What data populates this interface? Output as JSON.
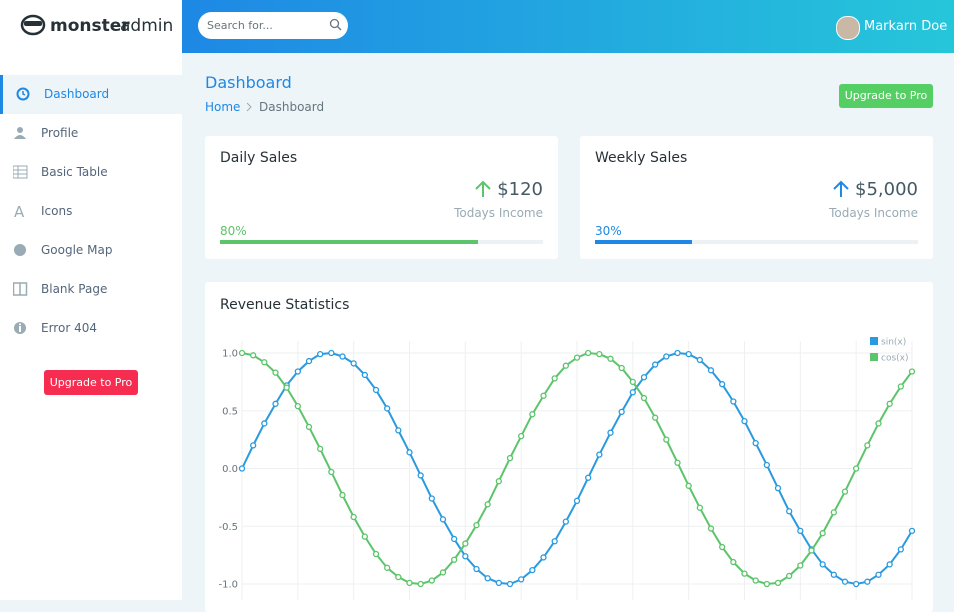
{
  "logo": {
    "bold": "monster",
    "light": "admin"
  },
  "search_placeholder": "Search for...",
  "user_name": "Markarn Doe",
  "sidebar": {
    "items": [
      "Dashboard",
      "Profile",
      "Basic Table",
      "Icons",
      "Google Map",
      "Blank Page",
      "Error 404"
    ],
    "active": 0,
    "button": "Upgrade to Pro"
  },
  "page": {
    "title": "Dashboard",
    "breadcrumb": [
      "Home",
      "Dashboard"
    ],
    "button": "Upgrade to Pro"
  },
  "cards": [
    {
      "title": "Daily Sales",
      "amount": "$120",
      "caption": "Todays Income",
      "progress": {
        "value": 80,
        "label": "80%"
      },
      "color": "#5cc46a"
    },
    {
      "title": "Weekly Sales",
      "amount": "$5,000",
      "caption": "Todays Income",
      "progress": {
        "value": 30,
        "label": "30%"
      },
      "color": "#1e88e5"
    }
  ],
  "chart_data": {
    "type": "line",
    "title": "Revenue Statistics",
    "x": [
      0,
      0.2,
      0.4,
      0.6,
      0.8,
      1.0,
      1.2,
      1.4,
      1.6,
      1.8,
      2.0,
      2.2,
      2.4,
      2.6,
      2.8,
      3.0,
      3.2,
      3.4,
      3.6,
      3.8,
      4.0,
      4.2,
      4.4,
      4.6,
      4.8,
      5.0,
      5.2,
      5.4,
      5.6,
      5.8,
      6.0,
      6.2,
      6.4,
      6.6,
      6.8,
      7.0,
      7.2,
      7.4,
      7.6,
      7.8,
      8.0,
      8.2,
      8.4,
      8.6,
      8.8,
      9.0,
      9.2,
      9.4,
      9.6,
      9.8,
      10.0,
      10.2,
      10.4,
      10.6,
      10.8,
      11.0,
      11.2,
      11.4,
      11.6,
      11.8,
      12.0
    ],
    "series": [
      {
        "name": "sin(x)",
        "color": "#2a9ae0",
        "values": [
          0.0,
          0.2,
          0.39,
          0.56,
          0.72,
          0.84,
          0.93,
          0.99,
          1.0,
          0.97,
          0.91,
          0.81,
          0.68,
          0.52,
          0.33,
          0.14,
          -0.06,
          -0.26,
          -0.44,
          -0.61,
          -0.76,
          -0.87,
          -0.95,
          -0.99,
          -1.0,
          -0.96,
          -0.88,
          -0.77,
          -0.63,
          -0.46,
          -0.28,
          -0.08,
          0.12,
          0.31,
          0.49,
          0.66,
          0.79,
          0.9,
          0.97,
          1.0,
          0.99,
          0.94,
          0.85,
          0.73,
          0.58,
          0.41,
          0.22,
          0.03,
          -0.17,
          -0.37,
          -0.54,
          -0.7,
          -0.83,
          -0.92,
          -0.98,
          -1.0,
          -0.98,
          -0.92,
          -0.83,
          -0.7,
          -0.54
        ]
      },
      {
        "name": "cos(x)",
        "color": "#5cc46a",
        "values": [
          1.0,
          0.98,
          0.92,
          0.83,
          0.7,
          0.54,
          0.36,
          0.17,
          -0.03,
          -0.23,
          -0.42,
          -0.59,
          -0.74,
          -0.86,
          -0.94,
          -0.99,
          -1.0,
          -0.97,
          -0.9,
          -0.79,
          -0.65,
          -0.49,
          -0.31,
          -0.11,
          0.09,
          0.28,
          0.47,
          0.63,
          0.78,
          0.89,
          0.96,
          1.0,
          0.99,
          0.95,
          0.87,
          0.75,
          0.61,
          0.44,
          0.25,
          0.05,
          -0.15,
          -0.34,
          -0.52,
          -0.68,
          -0.81,
          -0.91,
          -0.97,
          -1.0,
          -0.99,
          -0.93,
          -0.84,
          -0.71,
          -0.56,
          -0.38,
          -0.2,
          0.0,
          0.2,
          0.39,
          0.56,
          0.71,
          0.84
        ]
      }
    ],
    "xlim": [
      0,
      12
    ],
    "xticks": [
      0,
      1,
      2,
      3,
      4,
      5,
      6,
      7,
      8,
      9,
      10,
      11,
      12
    ],
    "ylim": [
      -1,
      1
    ],
    "yticks": [
      {
        "value": -1,
        "label": "-1.0"
      },
      -0.5,
      {
        "value": 0,
        "label": "0.0"
      },
      0.5,
      {
        "value": 1,
        "label": "1.0"
      }
    ],
    "grid": true,
    "legend": "top-right"
  }
}
